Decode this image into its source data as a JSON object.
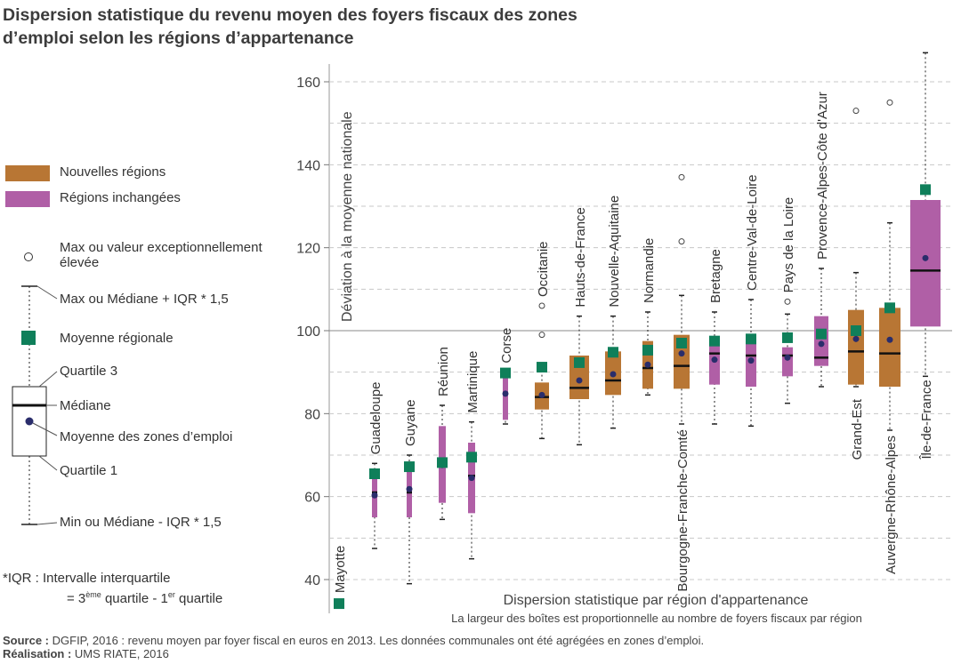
{
  "title": "Dispersion statistique du revenu moyen des foyers fiscaux des zones d’emploi selon les régions d’appartenance",
  "legend": {
    "new_regions": "Nouvelles régions",
    "unchanged_regions": "Régions inchangées",
    "outlier": "Max ou valeur exceptionnellement élevée",
    "whisker_max": "Max ou Médiane + IQR * 1,5",
    "regional_mean": "Moyenne régionale",
    "q3": "Quartile 3",
    "median": "Médiane",
    "mean_zones": "Moyenne des zones d’emploi",
    "q1": "Quartile 1",
    "whisker_min": "Min ou Médiane - IQR * 1,5"
  },
  "iqr_note": {
    "line1": "*IQR : Intervalle interquartile",
    "line2_prefix": "= 3",
    "line2_sup1": "ème",
    "line2_mid": " quartile - 1",
    "line2_sup2": "er",
    "line2_suffix": " quartile"
  },
  "footer": {
    "source_label": "Source :",
    "source_text": " DGFIP, 2016 : revenu moyen par foyer fiscal en euros en 2013. Les données communales ont été agrégées en zones d’emploi.",
    "credit_label": "Réalisation :",
    "credit_text": " UMS RIATE, 2016"
  },
  "colors": {
    "new_regions": "#b87634",
    "unchanged_regions": "#b05fa6",
    "regional_mean": "#0f7f5a",
    "zone_mean": "#2a2d6b",
    "grid": "#c8c8c8",
    "reference_line": "#8a8a8a"
  },
  "chart_data": {
    "type": "boxplot",
    "ylabel": "Déviation à la moyenne nationale",
    "xlabel": "Dispersion statistique par région d'appartenance",
    "xlabel_sub": "La largeur des boîtes est proportionnelle au nombre de foyers fiscaux par région",
    "ylim": [
      33,
      166
    ],
    "yticks": [
      40,
      60,
      80,
      100,
      120,
      140,
      160
    ],
    "reference": 100,
    "grid": true,
    "regions": [
      {
        "name": "Mayotte",
        "group": "unchanged",
        "mean_regional": 34.2
      },
      {
        "name": "Guadeloupe",
        "group": "unchanged",
        "min": 47.5,
        "q1": 55,
        "median": 61,
        "q3": 65,
        "max": 68,
        "mean_zones": 60.3,
        "mean_regional": 65.5
      },
      {
        "name": "Guyane",
        "group": "unchanged",
        "min": 39,
        "q1": 55,
        "median": 61,
        "q3": 66,
        "max": 70,
        "mean_zones": 61.8,
        "mean_regional": 67.2
      },
      {
        "name": "Réunion",
        "group": "unchanged",
        "min": 54.5,
        "q1": 58.5,
        "median": 67.5,
        "q3": 77,
        "max": 82,
        "mean_zones": 67.6,
        "mean_regional": 68.2
      },
      {
        "name": "Martinique",
        "group": "unchanged",
        "min": 45,
        "q1": 56,
        "median": 65,
        "q3": 73,
        "max": 78,
        "mean_zones": 64.5,
        "mean_regional": 69.5
      },
      {
        "name": "Corse",
        "group": "unchanged",
        "min": 77.5,
        "q1": 78.5,
        "median": 85,
        "q3": 90,
        "max": 90,
        "mean_zones": 84.8,
        "mean_regional": 89.8
      },
      {
        "name": "Occitanie",
        "group": "new",
        "min": 74,
        "q1": 81,
        "median": 84,
        "q3": 87.5,
        "max": 91.5,
        "mean_zones": 84.5,
        "mean_regional": 91.2,
        "outliers": [
          99,
          106
        ]
      },
      {
        "name": "Hauts-de-France",
        "group": "new",
        "min": 72.5,
        "q1": 83.5,
        "median": 86.2,
        "q3": 94,
        "max": 103.5,
        "mean_zones": 88,
        "mean_regional": 92.3
      },
      {
        "name": "Nouvelle-Aquitaine",
        "group": "new",
        "min": 76.5,
        "q1": 84.5,
        "median": 88,
        "q3": 95,
        "max": 103.5,
        "mean_zones": 89.5,
        "mean_regional": 94.8
      },
      {
        "name": "Normandie",
        "group": "new",
        "min": 84.5,
        "q1": 86,
        "median": 91,
        "q3": 97.5,
        "max": 104.5,
        "mean_zones": 91.8,
        "mean_regional": 95.3
      },
      {
        "name": "Bourgogne-Franche-Comté",
        "group": "new",
        "min": 77.5,
        "q1": 86,
        "median": 91.5,
        "q3": 99,
        "max": 108.5,
        "mean_zones": 94.5,
        "mean_regional": 97,
        "outliers": [
          121.5,
          137
        ]
      },
      {
        "name": "Bretagne",
        "group": "unchanged",
        "min": 77.5,
        "q1": 87,
        "median": 94.5,
        "q3": 98.5,
        "max": 104.5,
        "mean_zones": 93,
        "mean_regional": 97.5
      },
      {
        "name": "Centre-Val-de-Loire",
        "group": "unchanged",
        "min": 77,
        "q1": 86.5,
        "median": 94,
        "q3": 98.5,
        "max": 107.5,
        "mean_zones": 92.8,
        "mean_regional": 98
      },
      {
        "name": "Pays de la Loire",
        "group": "unchanged",
        "min": 82.5,
        "q1": 89,
        "median": 94,
        "q3": 96,
        "max": 104,
        "mean_zones": 93.5,
        "mean_regional": 98.3,
        "outliers": [
          107
        ]
      },
      {
        "name": "Provence-Alpes-Côte d'Azur",
        "group": "unchanged",
        "min": 86.5,
        "q1": 91.5,
        "median": 93.5,
        "q3": 103.5,
        "max": 115,
        "mean_zones": 96.8,
        "mean_regional": 99.2
      },
      {
        "name": "Grand-Est",
        "group": "new",
        "min": 86.5,
        "q1": 87,
        "median": 95,
        "q3": 105,
        "max": 114,
        "mean_zones": 98,
        "mean_regional": 100,
        "outliers": [
          153
        ]
      },
      {
        "name": "Auvergne-Rhône-Alpes",
        "group": "new",
        "min": 76,
        "q1": 86.5,
        "median": 94.5,
        "q3": 105.5,
        "max": 126,
        "mean_zones": 97.8,
        "mean_regional": 105.5,
        "outliers": [
          155
        ]
      },
      {
        "name": "Île-de-France",
        "group": "unchanged",
        "min": 89,
        "q1": 101,
        "median": 114.5,
        "q3": 131.5,
        "max": 167,
        "mean_zones": 117.5,
        "mean_regional": 134
      }
    ]
  }
}
